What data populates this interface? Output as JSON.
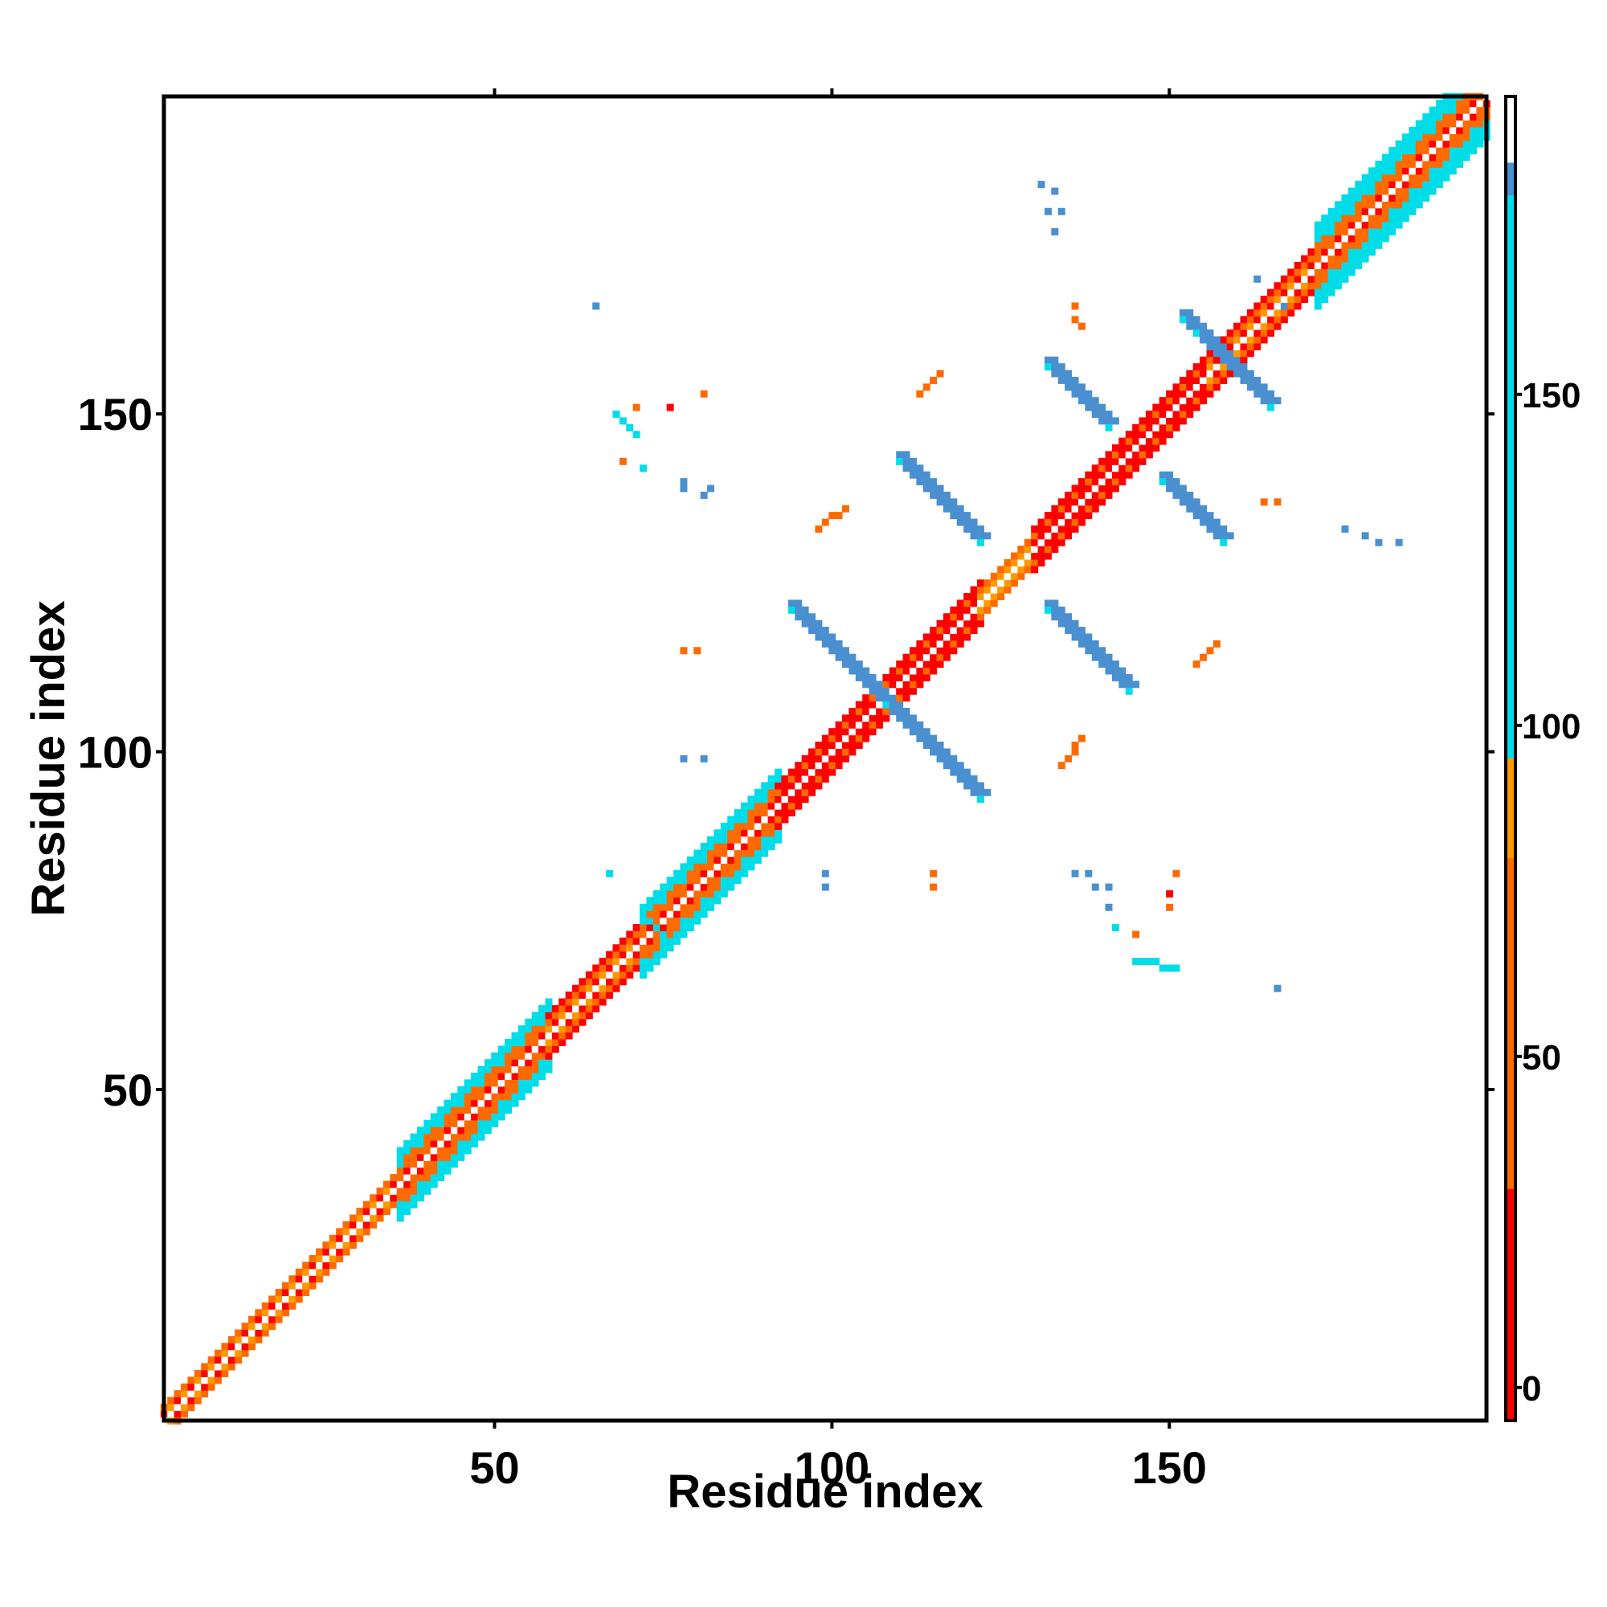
{
  "chart_data": {
    "type": "heatmap",
    "title": "",
    "xlabel": "Residue index",
    "ylabel": "Residue index",
    "xlim": [
      1,
      197
    ],
    "ylim": [
      1,
      197
    ],
    "xticks": [
      50,
      100,
      150
    ],
    "yticks": [
      50,
      100,
      150
    ],
    "colorbar": {
      "range": [
        -5,
        195
      ],
      "ticks": [
        0,
        50,
        100,
        150
      ],
      "bands": [
        {
          "from": -5,
          "to": 30,
          "color": "#ff0000"
        },
        {
          "from": 30,
          "to": 80,
          "color": "#ff6a00"
        },
        {
          "from": 80,
          "to": 95,
          "color": "#ff9900"
        },
        {
          "from": 95,
          "to": 180,
          "color": "#00dde8"
        },
        {
          "from": 180,
          "to": 185,
          "color": "#4a90d0"
        },
        {
          "from": 185,
          "to": 195,
          "color": "#ffffff"
        }
      ]
    },
    "diagonal_bands": [
      {
        "from": 1,
        "to": 36,
        "half_width": 2,
        "pattern": "orange-red"
      },
      {
        "from": 36,
        "to": 58,
        "half_width": 5,
        "pattern": "helix"
      },
      {
        "from": 58,
        "to": 72,
        "half_width": 3,
        "pattern": "orange-red"
      },
      {
        "from": 72,
        "to": 92,
        "half_width": 5,
        "pattern": "helix"
      },
      {
        "from": 92,
        "to": 108,
        "half_width": 3,
        "pattern": "red"
      },
      {
        "from": 108,
        "to": 122,
        "half_width": 3,
        "pattern": "red"
      },
      {
        "from": 122,
        "to": 130,
        "half_width": 2,
        "pattern": "orange"
      },
      {
        "from": 130,
        "to": 142,
        "half_width": 3,
        "pattern": "red"
      },
      {
        "from": 142,
        "to": 156,
        "half_width": 3,
        "pattern": "red"
      },
      {
        "from": 156,
        "to": 172,
        "half_width": 3,
        "pattern": "orange-red"
      },
      {
        "from": 172,
        "to": 197,
        "half_width": 6,
        "pattern": "helix"
      }
    ],
    "contacts": [
      {
        "x": [
          94,
          108
        ],
        "y": [
          122,
          108
        ],
        "value": 183
      },
      {
        "x": [
          108,
          122
        ],
        "y": [
          108,
          94
        ],
        "value": 183
      },
      {
        "x": [
          110,
          122
        ],
        "y": [
          144,
          132
        ],
        "value": 183
      },
      {
        "x": [
          132,
          144
        ],
        "y": [
          122,
          110
        ],
        "value": 183
      },
      {
        "x": [
          132,
          141
        ],
        "y": [
          158,
          149
        ],
        "value": 183
      },
      {
        "x": [
          149,
          158
        ],
        "y": [
          141,
          132
        ],
        "value": 183
      },
      {
        "x": [
          152,
          163
        ],
        "y": [
          165,
          154
        ],
        "value": 183
      },
      {
        "x": [
          154,
          165
        ],
        "y": [
          163,
          152
        ],
        "value": 183
      },
      {
        "x": [
          68,
          71
        ],
        "y": [
          150,
          147
        ],
        "value": 120
      },
      {
        "x": [
          145,
          151
        ],
        "y": [
          69,
          68
        ],
        "value": 120
      },
      {
        "x": [
          72,
          75
        ],
        "y": [
          76,
          73
        ],
        "value": 120
      },
      {
        "x": [
          98,
          102
        ],
        "y": [
          133,
          136
        ],
        "value": 70
      },
      {
        "x": [
          134,
          137
        ],
        "y": [
          98,
          102
        ],
        "value": 70
      },
      {
        "x": [
          113,
          116
        ],
        "y": [
          153,
          156
        ],
        "value": 70
      },
      {
        "x": [
          154,
          157
        ],
        "y": [
          113,
          116
        ],
        "value": 70
      }
    ],
    "points": [
      [
        65,
        166,
        183
      ],
      [
        71,
        151,
        70
      ],
      [
        76,
        151,
        10
      ],
      [
        81,
        153,
        70
      ],
      [
        78,
        140,
        183
      ],
      [
        78,
        139,
        183
      ],
      [
        82,
        139,
        183
      ],
      [
        81,
        138,
        183
      ],
      [
        69,
        143,
        70
      ],
      [
        72,
        142,
        120
      ],
      [
        78,
        115,
        30
      ],
      [
        80,
        115,
        30
      ],
      [
        78,
        99,
        183
      ],
      [
        81,
        99,
        183
      ],
      [
        99,
        82,
        183
      ],
      [
        99,
        80,
        183
      ],
      [
        115,
        82,
        30
      ],
      [
        115,
        80,
        30
      ],
      [
        136,
        82,
        183
      ],
      [
        138,
        82,
        183
      ],
      [
        139,
        80,
        183
      ],
      [
        141,
        80,
        183
      ],
      [
        151,
        82,
        70
      ],
      [
        150,
        79,
        10
      ],
      [
        150,
        77,
        70
      ],
      [
        142,
        74,
        120
      ],
      [
        141,
        77,
        183
      ],
      [
        145,
        73,
        70
      ],
      [
        166,
        65,
        183
      ],
      [
        67,
        82,
        120
      ],
      [
        131,
        184,
        183
      ],
      [
        133,
        183,
        183
      ],
      [
        132,
        180,
        183
      ],
      [
        134,
        180,
        183
      ],
      [
        133,
        177,
        183
      ],
      [
        136,
        166,
        70
      ],
      [
        136,
        164,
        70
      ],
      [
        137,
        163,
        70
      ],
      [
        164,
        137,
        70
      ],
      [
        166,
        137,
        70
      ],
      [
        176,
        133,
        183
      ],
      [
        179,
        132,
        183
      ],
      [
        181,
        131,
        183
      ],
      [
        184,
        131,
        183
      ],
      [
        163,
        170,
        183
      ],
      [
        167,
        166,
        183
      ]
    ]
  }
}
